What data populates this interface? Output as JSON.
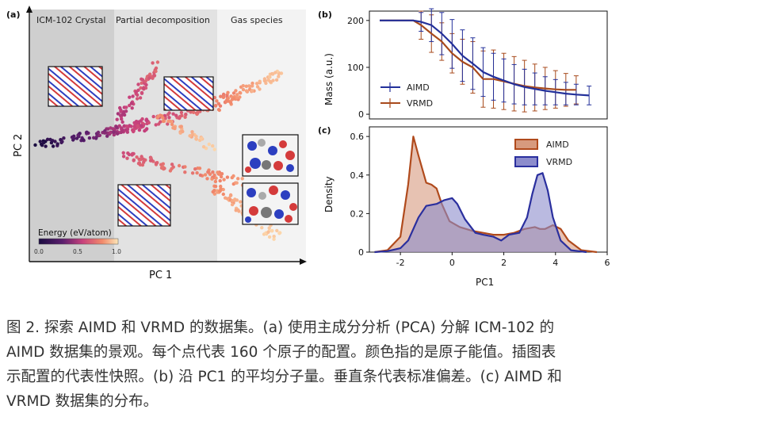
{
  "panel_a": {
    "label": "(a)",
    "region_labels": [
      "ICM-102 Crystal",
      "Partial decomposition",
      "Gas species"
    ],
    "xlabel": "PC 1",
    "ylabel": "PC 2",
    "colorbar_title": "Energy (eV/atom)",
    "colorbar_ticks": [
      "0.0",
      "0.5",
      "1.0"
    ],
    "colors": {
      "region_crystal": "#cfcfcf",
      "region_partial": "#e2e2e2",
      "region_gas": "#f2f2f2",
      "scatter_low": "#1b0c41",
      "scatter_mid": "#c7417c",
      "scatter_high": "#f8c98f"
    }
  },
  "panel_b": {
    "label": "(b)",
    "ylabel": "Mass (a.u.)",
    "yticks": [
      "0",
      "100",
      "200"
    ],
    "legend": [
      "AIMD",
      "VRMD"
    ],
    "colors": {
      "AIMD": "#23309a",
      "VRMD": "#a84a1c"
    }
  },
  "panel_c": {
    "label": "(c)",
    "ylabel": "Density",
    "xlabel": "PC1",
    "yticks": [
      "0",
      "0.2",
      "0.4",
      "0.6"
    ],
    "xticks": [
      "-2",
      "0",
      "2",
      "4",
      "6"
    ],
    "legend": [
      "AIMD",
      "VRMD"
    ],
    "colors": {
      "AIMD_fill": "#d79a7e",
      "AIMD_line": "#b04a1c",
      "VRMD_fill": "#8c8ccc",
      "VRMD_line": "#2a2f9e"
    }
  },
  "chart_data": [
    {
      "type": "line",
      "panel": "b",
      "ylabel": "Mass (a.u.)",
      "ylim": [
        -10,
        220
      ],
      "xlim": [
        -3.2,
        6
      ],
      "series": [
        {
          "name": "AIMD",
          "x": [
            -2.8,
            -1.5,
            -1.2,
            -0.8,
            -0.4,
            0.0,
            0.4,
            0.8,
            1.2,
            1.6,
            2.0,
            2.4,
            2.8,
            3.2,
            3.6,
            4.0,
            4.4,
            4.8,
            5.3
          ],
          "y": [
            200,
            200,
            197,
            190,
            172,
            150,
            125,
            108,
            90,
            80,
            72,
            64,
            58,
            54,
            50,
            47,
            44,
            42,
            40
          ],
          "err": [
            0,
            0,
            20,
            35,
            45,
            52,
            55,
            55,
            52,
            50,
            46,
            42,
            38,
            34,
            30,
            27,
            24,
            22,
            20
          ]
        },
        {
          "name": "VRMD",
          "x": [
            -2.8,
            -1.5,
            -1.2,
            -0.8,
            -0.4,
            0.0,
            0.4,
            0.8,
            1.2,
            1.6,
            2.0,
            2.4,
            2.8,
            3.2,
            3.6,
            4.0,
            4.4,
            4.8
          ],
          "y": [
            200,
            200,
            190,
            172,
            155,
            130,
            112,
            100,
            75,
            75,
            70,
            65,
            60,
            57,
            55,
            53,
            52,
            52
          ],
          "err": [
            0,
            0,
            30,
            40,
            40,
            42,
            48,
            55,
            60,
            62,
            60,
            58,
            55,
            50,
            45,
            40,
            35,
            30
          ]
        }
      ]
    },
    {
      "type": "area",
      "panel": "c",
      "xlabel": "PC1",
      "ylabel": "Density",
      "xlim": [
        -3.2,
        6
      ],
      "ylim": [
        0,
        0.65
      ],
      "series": [
        {
          "name": "AIMD",
          "x": [
            -3.0,
            -2.5,
            -2.0,
            -1.7,
            -1.5,
            -1.3,
            -1.0,
            -0.8,
            -0.6,
            -0.4,
            -0.1,
            0.3,
            0.8,
            1.2,
            1.6,
            2.0,
            2.4,
            2.8,
            3.2,
            3.4,
            3.6,
            3.9,
            4.2,
            4.5,
            5.0,
            5.6
          ],
          "y": [
            0.0,
            0.01,
            0.08,
            0.35,
            0.6,
            0.5,
            0.36,
            0.35,
            0.33,
            0.25,
            0.16,
            0.13,
            0.11,
            0.1,
            0.09,
            0.09,
            0.1,
            0.12,
            0.13,
            0.12,
            0.12,
            0.14,
            0.12,
            0.06,
            0.01,
            0.0
          ]
        },
        {
          "name": "VRMD",
          "x": [
            -3.0,
            -2.5,
            -2.0,
            -1.7,
            -1.3,
            -1.0,
            -0.6,
            -0.3,
            0.0,
            0.2,
            0.5,
            0.9,
            1.2,
            1.6,
            1.9,
            2.2,
            2.6,
            2.9,
            3.1,
            3.3,
            3.5,
            3.7,
            3.9,
            4.2,
            4.6,
            5.2
          ],
          "y": [
            0.0,
            0.005,
            0.02,
            0.06,
            0.18,
            0.24,
            0.25,
            0.27,
            0.28,
            0.25,
            0.17,
            0.1,
            0.09,
            0.08,
            0.06,
            0.09,
            0.1,
            0.18,
            0.3,
            0.4,
            0.41,
            0.32,
            0.18,
            0.06,
            0.01,
            0.0
          ]
        }
      ]
    }
  ],
  "caption": {
    "line1": "图 2. 探索 AIMD 和 VRMD 的数据集。(a) 使用主成分分析 (PCA) 分解 ICM-102 的",
    "line2": "AIMD 数据集的景观。每个点代表 160 个原子的配置。颜色指的是原子能值。插图表",
    "line3": "示配置的代表性快照。(b) 沿 PC1 的平均分子量。垂直条代表标准偏差。(c) AIMD 和",
    "line4": "VRMD 数据集的分布。"
  }
}
